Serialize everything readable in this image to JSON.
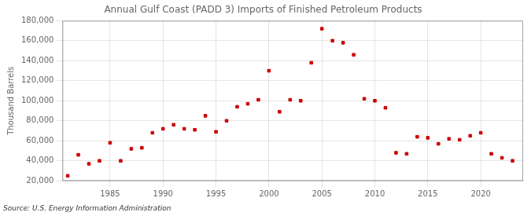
{
  "chart_data": {
    "type": "scatter",
    "title": "Annual Gulf Coast (PADD 3) Imports of Finished Petroleum Products",
    "y_label": "Thousand Barrels",
    "annotations": [
      "Source: U.S. Energy Information Administration"
    ],
    "x": [
      1981,
      1982,
      1983,
      1984,
      1985,
      1986,
      1987,
      1988,
      1989,
      1990,
      1991,
      1992,
      1993,
      1994,
      1995,
      1996,
      1997,
      1998,
      1999,
      2000,
      2001,
      2002,
      2003,
      2004,
      2005,
      2006,
      2007,
      2008,
      2009,
      2010,
      2011,
      2012,
      2013,
      2014,
      2015,
      2016,
      2017,
      2018,
      2019,
      2020,
      2021,
      2022,
      2023
    ],
    "values": [
      25000,
      46000,
      37000,
      40000,
      58000,
      40000,
      52000,
      53000,
      68000,
      72000,
      76000,
      72000,
      71000,
      85000,
      69000,
      80000,
      94000,
      97000,
      101000,
      130000,
      89000,
      101000,
      100000,
      138000,
      172000,
      160000,
      158000,
      146000,
      102000,
      100000,
      93000,
      48000,
      47000,
      64000,
      63000,
      57000,
      62000,
      61000,
      65000,
      68000,
      47000,
      43000,
      40000
    ],
    "color": "#cc0000",
    "marker": "square",
    "xlim": [
      1980.5,
      2024
    ],
    "xticks": [
      1985,
      1990,
      1995,
      2000,
      2005,
      2010,
      2015,
      2020
    ],
    "ylim": [
      20000,
      180000
    ],
    "yticks": [
      {
        "value": 20000,
        "label": "20,000"
      },
      {
        "value": 40000,
        "label": "40,000"
      },
      {
        "value": 60000,
        "label": "60,000"
      },
      {
        "value": 80000,
        "label": "80,000"
      },
      {
        "value": 100000,
        "label": "100,000"
      },
      {
        "value": 120000,
        "label": "120,000"
      },
      {
        "value": 140000,
        "label": "140,000"
      },
      {
        "value": 160000,
        "label": "160,000"
      },
      {
        "value": 180000,
        "label": "180,000"
      }
    ],
    "grid": true,
    "legend": false
  }
}
